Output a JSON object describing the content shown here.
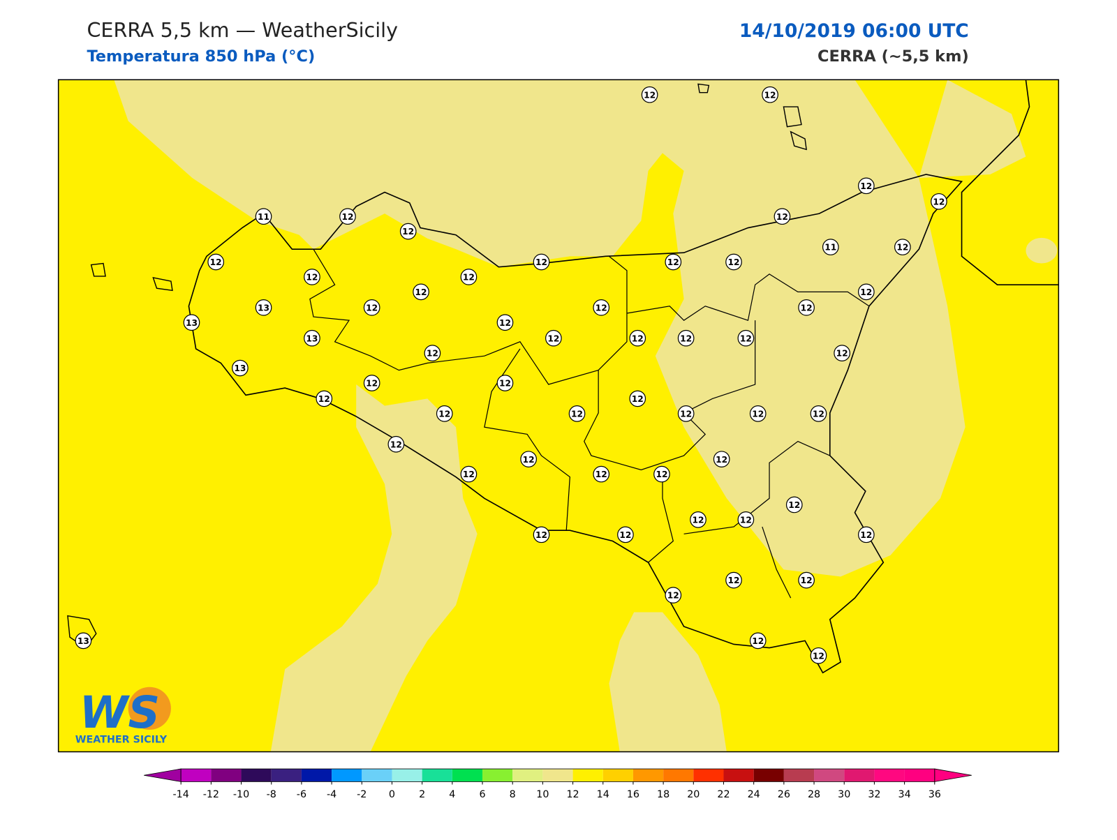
{
  "header": {
    "title": "CERRA 5,5 km — WeatherSicily",
    "subtitle": "Temperatura 850 hPa (°C)",
    "datetime": "14/10/2019 06:00 UTC",
    "model": "CERRA (~5,5 km)"
  },
  "stations": [
    12,
    12,
    12,
    12,
    11,
    12,
    12,
    12,
    12,
    12,
    12,
    12,
    12,
    12,
    11,
    12,
    13,
    12,
    12,
    12,
    12,
    12,
    13,
    13,
    12,
    12,
    12,
    12,
    12,
    12,
    13,
    12,
    12,
    12,
    12,
    12,
    12,
    12,
    12,
    12,
    12,
    12,
    12,
    12,
    12,
    12,
    12,
    12,
    12,
    12,
    12,
    12,
    12,
    12,
    12,
    12,
    12,
    12,
    13
  ],
  "colorbar": {
    "ticks": [
      -14,
      -12,
      -10,
      -8,
      -6,
      -4,
      -2,
      0,
      2,
      4,
      6,
      8,
      10,
      12,
      14,
      16,
      18,
      20,
      22,
      24,
      26,
      28,
      30,
      32,
      34,
      36
    ],
    "colors": [
      "#c000c0",
      "#800080",
      "#2e0a5a",
      "#3a2080",
      "#0018a8",
      "#0098ff",
      "#6ad0f8",
      "#98f0e8",
      "#18e098",
      "#00e050",
      "#88f030",
      "#e0f080",
      "#f0e68c",
      "#fff000",
      "#ffd000",
      "#ff9800",
      "#ff7800",
      "#ff3000",
      "#c81010",
      "#780000",
      "#b83c50",
      "#d04880",
      "#e01870",
      "#ff0880",
      "#ff0080"
    ],
    "under": "#a000a0",
    "over": "#ff0080"
  },
  "logo": {
    "text": "WS",
    "subtitle": "WEATHER SICILY"
  }
}
